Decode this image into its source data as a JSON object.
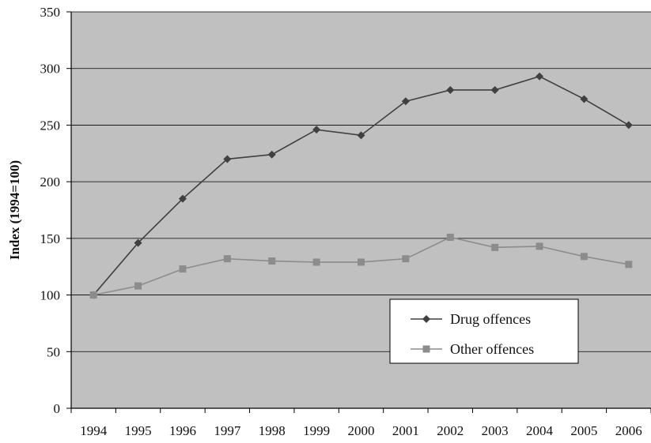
{
  "chart_data": {
    "type": "line",
    "title": "",
    "xlabel": "",
    "ylabel": "Index (1994=100)",
    "ylim": [
      0,
      350
    ],
    "yticks": [
      0,
      50,
      100,
      150,
      200,
      250,
      300,
      350
    ],
    "grid": true,
    "legend_position": "lower-right",
    "categories": [
      "1994",
      "1995",
      "1996",
      "1997",
      "1998",
      "1999",
      "2000",
      "2001",
      "2002",
      "2003",
      "2004",
      "2005",
      "2006"
    ],
    "series": [
      {
        "name": "Drug offences",
        "color": "#404040",
        "marker": "diamond",
        "values": [
          100,
          146,
          185,
          220,
          224,
          246,
          241,
          271,
          281,
          281,
          293,
          273,
          250
        ]
      },
      {
        "name": "Other offences",
        "color": "#8c8c8c",
        "marker": "square",
        "values": [
          100,
          108,
          123,
          132,
          130,
          129,
          129,
          132,
          151,
          142,
          143,
          134,
          127
        ]
      }
    ],
    "colors": {
      "plot_background": "#c0c0c0",
      "grid": "#000000"
    }
  }
}
